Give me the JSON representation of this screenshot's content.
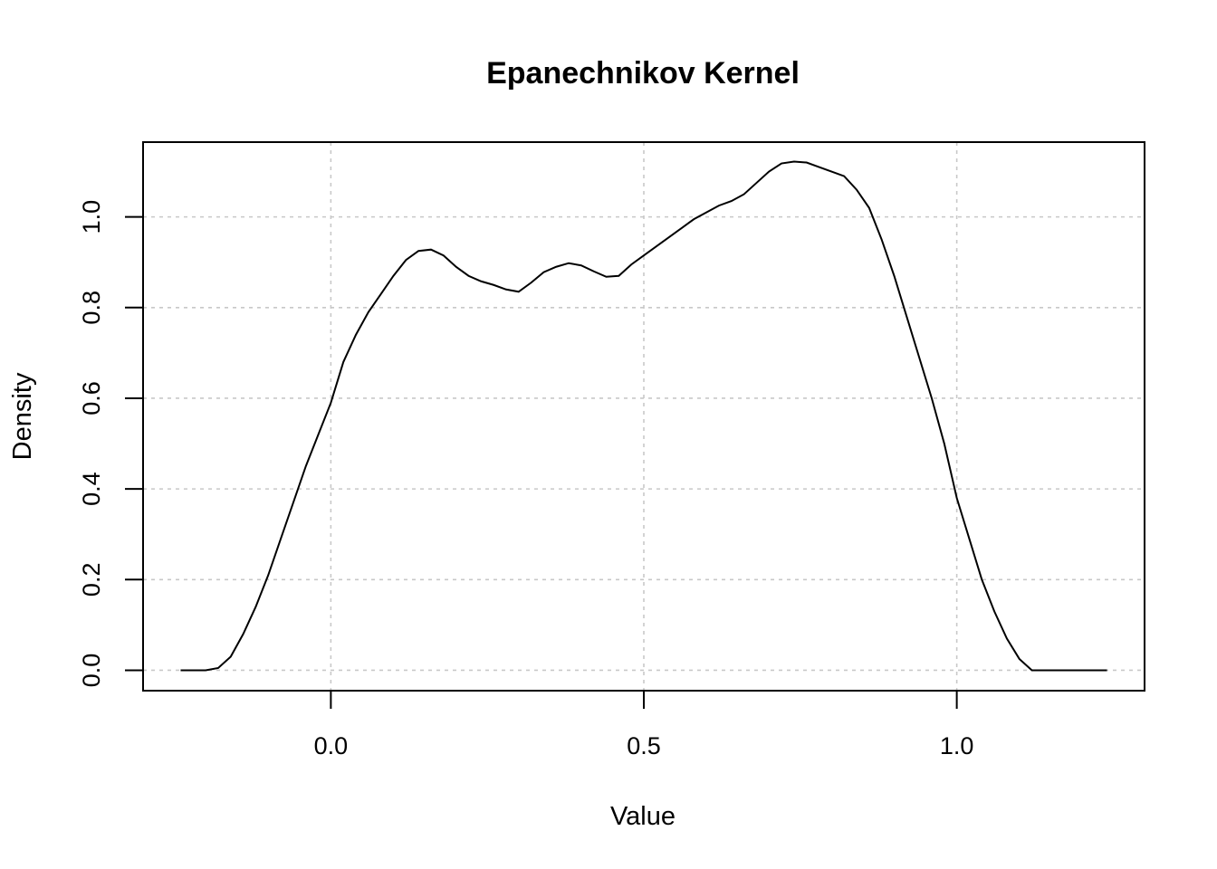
{
  "chart_data": {
    "type": "line",
    "title": "Epanechnikov Kernel",
    "xlabel": "Value",
    "ylabel": "Density",
    "xlim": [
      -0.3,
      1.3
    ],
    "ylim": [
      -0.045,
      1.165
    ],
    "x_ticks": [
      0.0,
      0.5,
      1.0
    ],
    "x_tick_labels": [
      "0.0",
      "0.5",
      "1.0"
    ],
    "y_ticks": [
      0.0,
      0.2,
      0.4,
      0.6,
      0.8,
      1.0
    ],
    "y_tick_labels": [
      "0.0",
      "0.2",
      "0.4",
      "0.6",
      "0.8",
      "1.0"
    ],
    "grid": true,
    "line_color": "#000000",
    "grid_color": "#c8c8c8",
    "series": [
      {
        "x": [
          -0.24,
          -0.2,
          -0.18,
          -0.16,
          -0.14,
          -0.12,
          -0.1,
          -0.08,
          -0.06,
          -0.04,
          -0.02,
          0.0,
          0.02,
          0.04,
          0.06,
          0.08,
          0.1,
          0.12,
          0.14,
          0.16,
          0.18,
          0.2,
          0.22,
          0.24,
          0.26,
          0.28,
          0.3,
          0.32,
          0.34,
          0.36,
          0.38,
          0.4,
          0.42,
          0.44,
          0.46,
          0.48,
          0.5,
          0.52,
          0.54,
          0.56,
          0.58,
          0.6,
          0.62,
          0.64,
          0.66,
          0.68,
          0.7,
          0.72,
          0.74,
          0.76,
          0.78,
          0.8,
          0.82,
          0.84,
          0.86,
          0.88,
          0.9,
          0.92,
          0.94,
          0.96,
          0.98,
          1.0,
          1.02,
          1.04,
          1.06,
          1.08,
          1.1,
          1.12,
          1.14,
          1.16,
          1.18,
          1.2,
          1.24
        ],
        "y": [
          0.0,
          0.0,
          0.005,
          0.03,
          0.08,
          0.14,
          0.21,
          0.29,
          0.37,
          0.45,
          0.52,
          0.59,
          0.68,
          0.74,
          0.79,
          0.83,
          0.87,
          0.905,
          0.925,
          0.928,
          0.915,
          0.89,
          0.87,
          0.858,
          0.85,
          0.84,
          0.835,
          0.855,
          0.878,
          0.89,
          0.898,
          0.893,
          0.88,
          0.868,
          0.87,
          0.895,
          0.915,
          0.935,
          0.955,
          0.975,
          0.995,
          1.01,
          1.025,
          1.035,
          1.05,
          1.075,
          1.1,
          1.118,
          1.122,
          1.12,
          1.11,
          1.1,
          1.09,
          1.06,
          1.02,
          0.95,
          0.87,
          0.78,
          0.69,
          0.6,
          0.5,
          0.38,
          0.29,
          0.2,
          0.13,
          0.07,
          0.025,
          0.0,
          0.0,
          0.0,
          0.0,
          0.0,
          0.0
        ]
      }
    ]
  }
}
